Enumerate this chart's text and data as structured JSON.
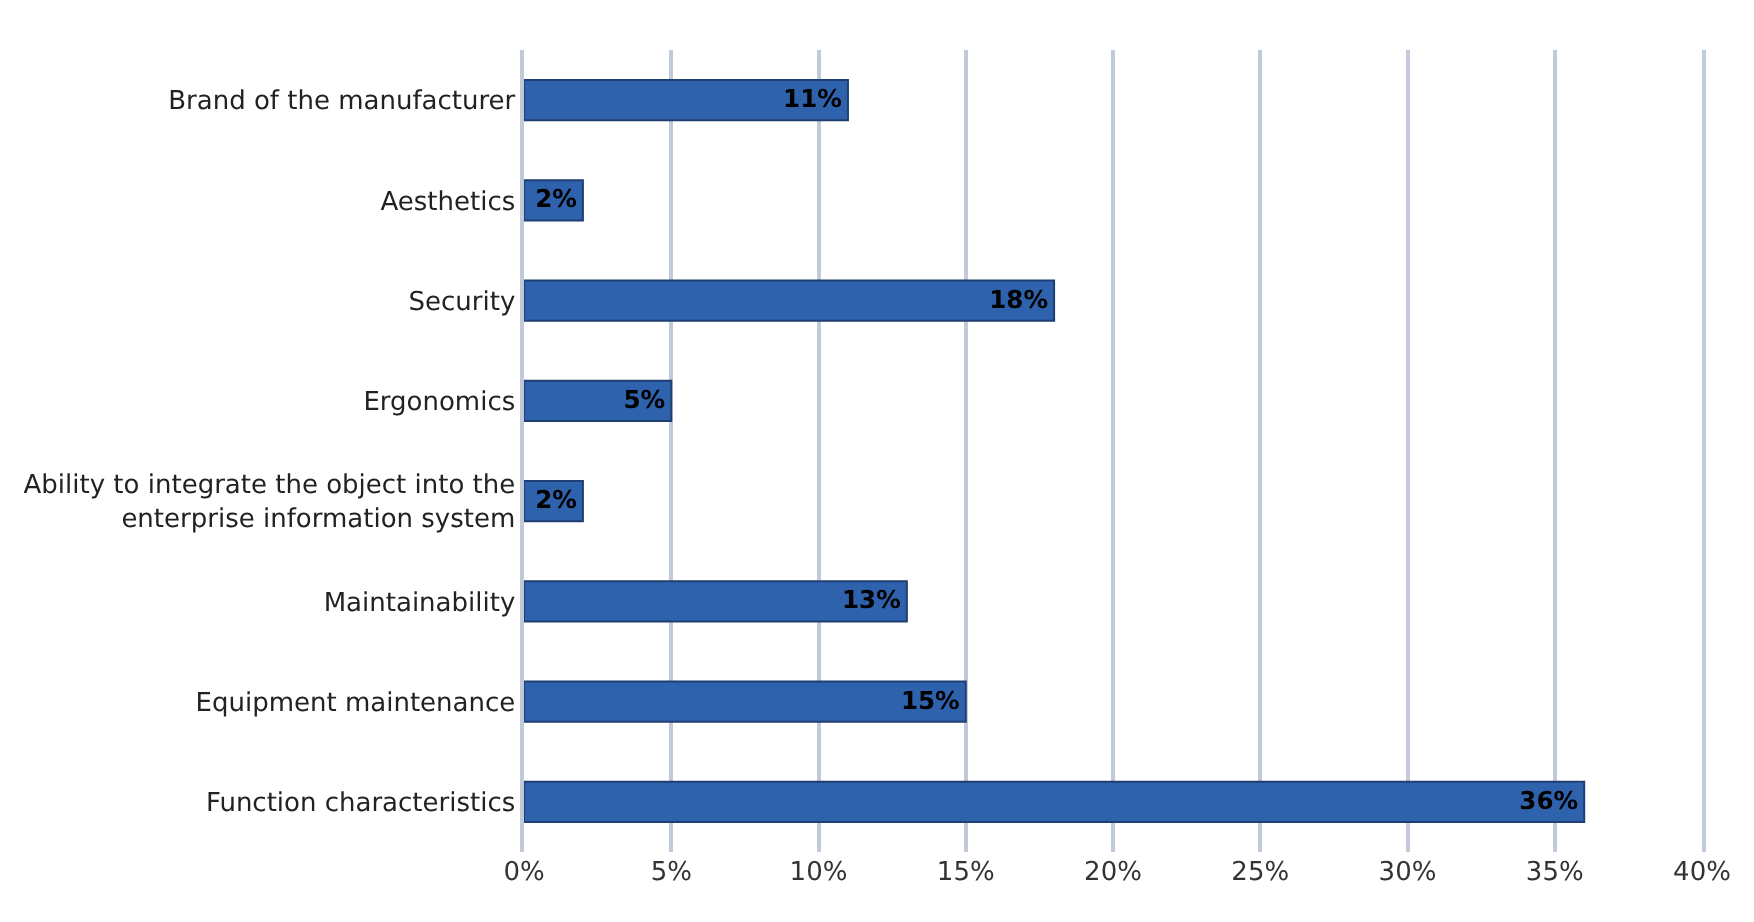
{
  "chart_data": {
    "type": "bar",
    "orientation": "horizontal",
    "categories": [
      "Brand of the manufacturer",
      "Aesthetics",
      "Security",
      "Ergonomics",
      "Ability to integrate the object into the enterprise information system",
      "Maintainability",
      "Equipment maintenance",
      "Function characteristics"
    ],
    "values": [
      11,
      2,
      18,
      5,
      2,
      13,
      15,
      36
    ],
    "value_labels": [
      "11%",
      "2%",
      "18%",
      "5%",
      "2%",
      "13%",
      "15%",
      "36%"
    ],
    "color": "#2e62ad",
    "xlim": [
      0,
      40
    ],
    "xticks": [
      {
        "value": 0,
        "label": "0%"
      },
      {
        "value": 5,
        "label": "5%"
      },
      {
        "value": 10,
        "label": "10%"
      },
      {
        "value": 15,
        "label": "15%"
      },
      {
        "value": 20,
        "label": "20%"
      },
      {
        "value": 25,
        "label": "25%"
      },
      {
        "value": 30,
        "label": "30%"
      },
      {
        "value": 35,
        "label": "35%"
      },
      {
        "value": 40,
        "label": "40%"
      }
    ],
    "grid": "x"
  }
}
